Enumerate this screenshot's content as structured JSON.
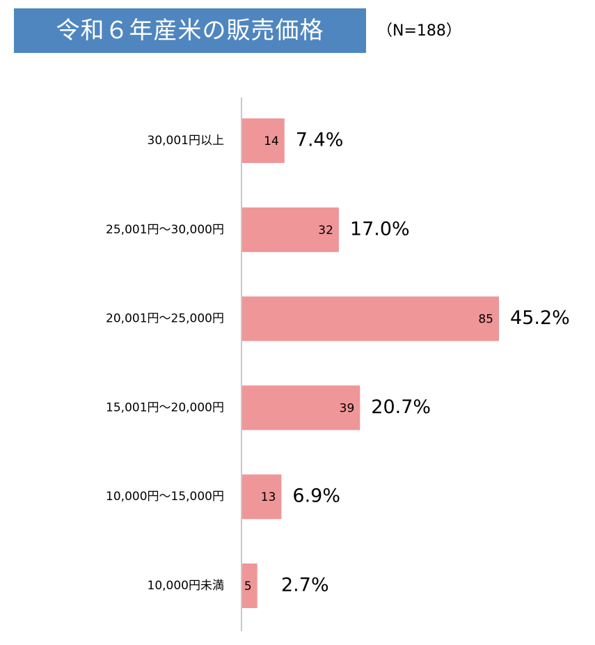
{
  "header": {
    "title": "令和６年産米の販売価格",
    "sample_size": "（N=188）"
  },
  "colors": {
    "title_background": "#4f86bf",
    "bar": "#ef9698",
    "axis": "#c8c8c8"
  },
  "chart_data": {
    "type": "bar",
    "orientation": "horizontal",
    "title": "令和６年産米の販売価格",
    "subtitle": "（N=188）",
    "categories": [
      "30,001円以上",
      "25,001円～30,000円",
      "20,001円～25,000円",
      "15,001円～20,000円",
      "10,000円～15,000円",
      "10,000円未満"
    ],
    "series": [
      {
        "values": [
          14,
          32,
          85,
          39,
          13,
          5
        ],
        "percent_labels": [
          "7.4%",
          "17.0%",
          "45.2%",
          "20.7%",
          "6.9%",
          "2.7%"
        ]
      }
    ],
    "xlim": [
      0,
      85
    ],
    "grid": false,
    "legend": "none"
  }
}
